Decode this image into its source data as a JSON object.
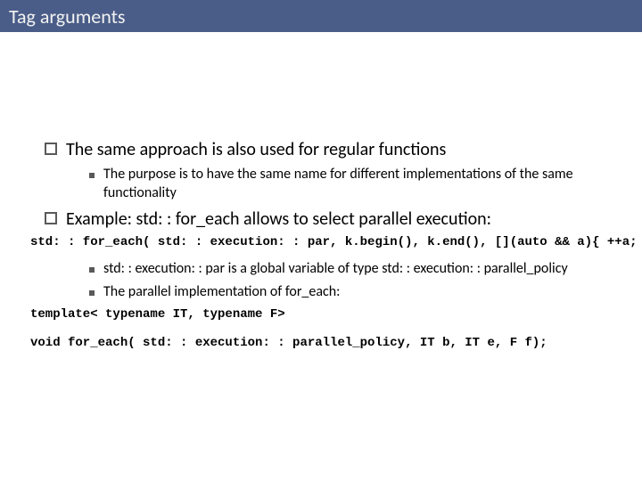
{
  "title": {
    "text": "Tag arguments",
    "bg_color": "#4a5d88",
    "text_color": "#f2f2f2"
  },
  "bullets": {
    "b1": "The same approach is also used for regular functions",
    "b1_sub1": "The purpose is to have the same name for different implementations of the same functionality",
    "b2": "Example: std: : for_each allows to select parallel execution:",
    "b2_sub1": "std: : execution: : par is a global variable of type std: : execution: : parallel_policy",
    "b2_sub2": "The parallel implementation of for_each:"
  },
  "code": {
    "line1": "std: : for_each( std: : execution: : par, k.begin(), k.end(), [](auto && a){ ++a; });",
    "line2": "template< typename IT, typename F>",
    "line3": "void for_each( std: : execution: : parallel_policy, IT b, IT e, F f);"
  },
  "colors": {
    "body_bg": "#ffffff",
    "bullet_marker": "#595959",
    "text": "#000000"
  }
}
